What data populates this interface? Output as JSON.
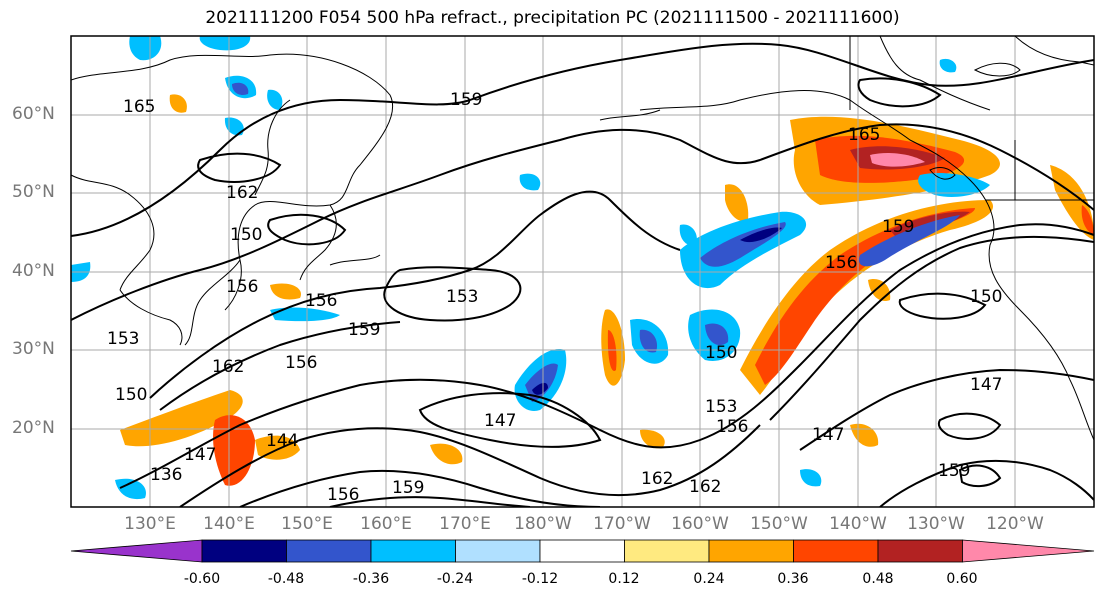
{
  "title": "2021111200 F054 500 hPa refract., precipitation PC (2021111500 - 2021111600)",
  "lat_labels": [
    "60°N",
    "50°N",
    "40°N",
    "30°N",
    "20°N"
  ],
  "lon_labels": [
    "130°E",
    "140°E",
    "150°E",
    "160°E",
    "170°E",
    "180°W",
    "170°W",
    "160°W",
    "150°W",
    "140°W",
    "130°W",
    "120°W"
  ],
  "contour_labels": [
    "165",
    "159",
    "162",
    "150",
    "156",
    "156",
    "153",
    "159",
    "153",
    "150",
    "162",
    "156",
    "147",
    "144",
    "136",
    "156",
    "159",
    "147",
    "162",
    "162",
    "150",
    "153",
    "156",
    "156",
    "159",
    "165",
    "150",
    "147",
    "147",
    "159"
  ],
  "colorbar": {
    "ticks": [
      "-0.60",
      "-0.48",
      "-0.36",
      "-0.24",
      "-0.12",
      "0.12",
      "0.24",
      "0.36",
      "0.48",
      "0.60"
    ],
    "colors": [
      "#9933cc",
      "#000080",
      "#3355cc",
      "#00bfff",
      "#b0e0ff",
      "#ffffff",
      "#ffea80",
      "#ffa500",
      "#ff4500",
      "#b22222",
      "#ff88aa"
    ]
  },
  "shading_colors": {
    "orange": "#ffa500",
    "red": "#ff4500",
    "darkred": "#b22222",
    "pink": "#ff88aa",
    "yellow": "#ffea80",
    "lightblue": "#b0e0ff",
    "cyan": "#00bfff",
    "blue": "#3355cc",
    "navy": "#000080"
  }
}
